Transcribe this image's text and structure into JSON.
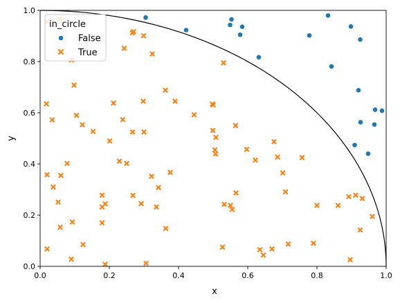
{
  "chart_data": {
    "type": "scatter",
    "xlabel": "x",
    "ylabel": "y",
    "xlim": [
      0,
      1
    ],
    "ylim": [
      0,
      1
    ],
    "grid": false,
    "x_ticks": [
      "0.0",
      "0.2",
      "0.4",
      "0.6",
      "0.8",
      "1.0"
    ],
    "y_ticks": [
      "0.0",
      "0.2",
      "0.4",
      "0.6",
      "0.8",
      "1.0"
    ],
    "legend": {
      "title": "in_circle",
      "placement": "top-left",
      "entries": [
        "False",
        "True"
      ]
    },
    "reference_curve": "unit quarter circle x^2 + y^2 = 1",
    "series": [
      {
        "name": "False",
        "marker": "circle",
        "color": "#1f77b4",
        "points": [
          [
            0.305,
            0.972
          ],
          [
            0.422,
            0.923
          ],
          [
            0.549,
            0.943
          ],
          [
            0.553,
            0.965
          ],
          [
            0.578,
            0.905
          ],
          [
            0.584,
            0.936
          ],
          [
            0.632,
            0.817
          ],
          [
            0.778,
            0.902
          ],
          [
            0.832,
            0.98
          ],
          [
            0.842,
            0.781
          ],
          [
            0.898,
            0.937
          ],
          [
            0.925,
            0.886
          ],
          [
            0.92,
            0.688
          ],
          [
            0.926,
            0.563
          ],
          [
            0.909,
            0.474
          ],
          [
            0.948,
            0.44
          ],
          [
            0.966,
            0.554
          ],
          [
            0.968,
            0.612
          ],
          [
            0.988,
            0.608
          ]
        ]
      },
      {
        "name": "True",
        "marker": "x",
        "color": "#ff7f0e",
        "points": [
          [
            0.02,
            0.955
          ],
          [
            0.057,
            0.965
          ],
          [
            0.091,
            0.806
          ],
          [
            0.018,
            0.635
          ],
          [
            0.035,
            0.572
          ],
          [
            0.098,
            0.708
          ],
          [
            0.105,
            0.59
          ],
          [
            0.122,
            0.553
          ],
          [
            0.153,
            0.527
          ],
          [
            0.201,
            0.49
          ],
          [
            0.212,
            0.638
          ],
          [
            0.239,
            0.573
          ],
          [
            0.243,
            0.852
          ],
          [
            0.267,
            0.912
          ],
          [
            0.27,
            0.917
          ],
          [
            0.299,
            0.901
          ],
          [
            0.324,
            0.83
          ],
          [
            0.267,
            0.525
          ],
          [
            0.298,
            0.645
          ],
          [
            0.3,
            0.525
          ],
          [
            0.362,
            0.688
          ],
          [
            0.39,
            0.645
          ],
          [
            0.445,
            0.592
          ],
          [
            0.498,
            0.634
          ],
          [
            0.5,
            0.631
          ],
          [
            0.53,
            0.795
          ],
          [
            0.499,
            0.531
          ],
          [
            0.508,
            0.504
          ],
          [
            0.565,
            0.55
          ],
          [
            0.505,
            0.455
          ],
          [
            0.507,
            0.439
          ],
          [
            0.597,
            0.457
          ],
          [
            0.622,
            0.415
          ],
          [
            0.676,
            0.487
          ],
          [
            0.686,
            0.427
          ],
          [
            0.701,
            0.365
          ],
          [
            0.757,
            0.425
          ],
          [
            0.709,
            0.291
          ],
          [
            0.02,
            0.358
          ],
          [
            0.078,
            0.402
          ],
          [
            0.06,
            0.355
          ],
          [
            0.038,
            0.31
          ],
          [
            0.229,
            0.411
          ],
          [
            0.25,
            0.402
          ],
          [
            0.322,
            0.352
          ],
          [
            0.342,
            0.308
          ],
          [
            0.376,
            0.367
          ],
          [
            0.052,
            0.251
          ],
          [
            0.179,
            0.278
          ],
          [
            0.179,
            0.232
          ],
          [
            0.188,
            0.244
          ],
          [
            0.268,
            0.277
          ],
          [
            0.292,
            0.245
          ],
          [
            0.336,
            0.232
          ],
          [
            0.532,
            0.242
          ],
          [
            0.55,
            0.238
          ],
          [
            0.555,
            0.222
          ],
          [
            0.566,
            0.287
          ],
          [
            0.058,
            0.153
          ],
          [
            0.093,
            0.173
          ],
          [
            0.179,
            0.17
          ],
          [
            0.124,
            0.085
          ],
          [
            0.363,
            0.148
          ],
          [
            0.02,
            0.068
          ],
          [
            0.09,
            0.028
          ],
          [
            0.188,
            0.008
          ],
          [
            0.306,
            0.012
          ],
          [
            0.527,
            0.075
          ],
          [
            0.635,
            0.065
          ],
          [
            0.645,
            0.044
          ],
          [
            0.67,
            0.068
          ],
          [
            0.717,
            0.087
          ],
          [
            0.79,
            0.09
          ],
          [
            0.8,
            0.238
          ],
          [
            0.861,
            0.238
          ],
          [
            0.892,
            0.272
          ],
          [
            0.912,
            0.278
          ],
          [
            0.931,
            0.265
          ],
          [
            0.96,
            0.195
          ],
          [
            0.925,
            0.142
          ],
          [
            0.896,
            0.026
          ]
        ]
      }
    ]
  }
}
